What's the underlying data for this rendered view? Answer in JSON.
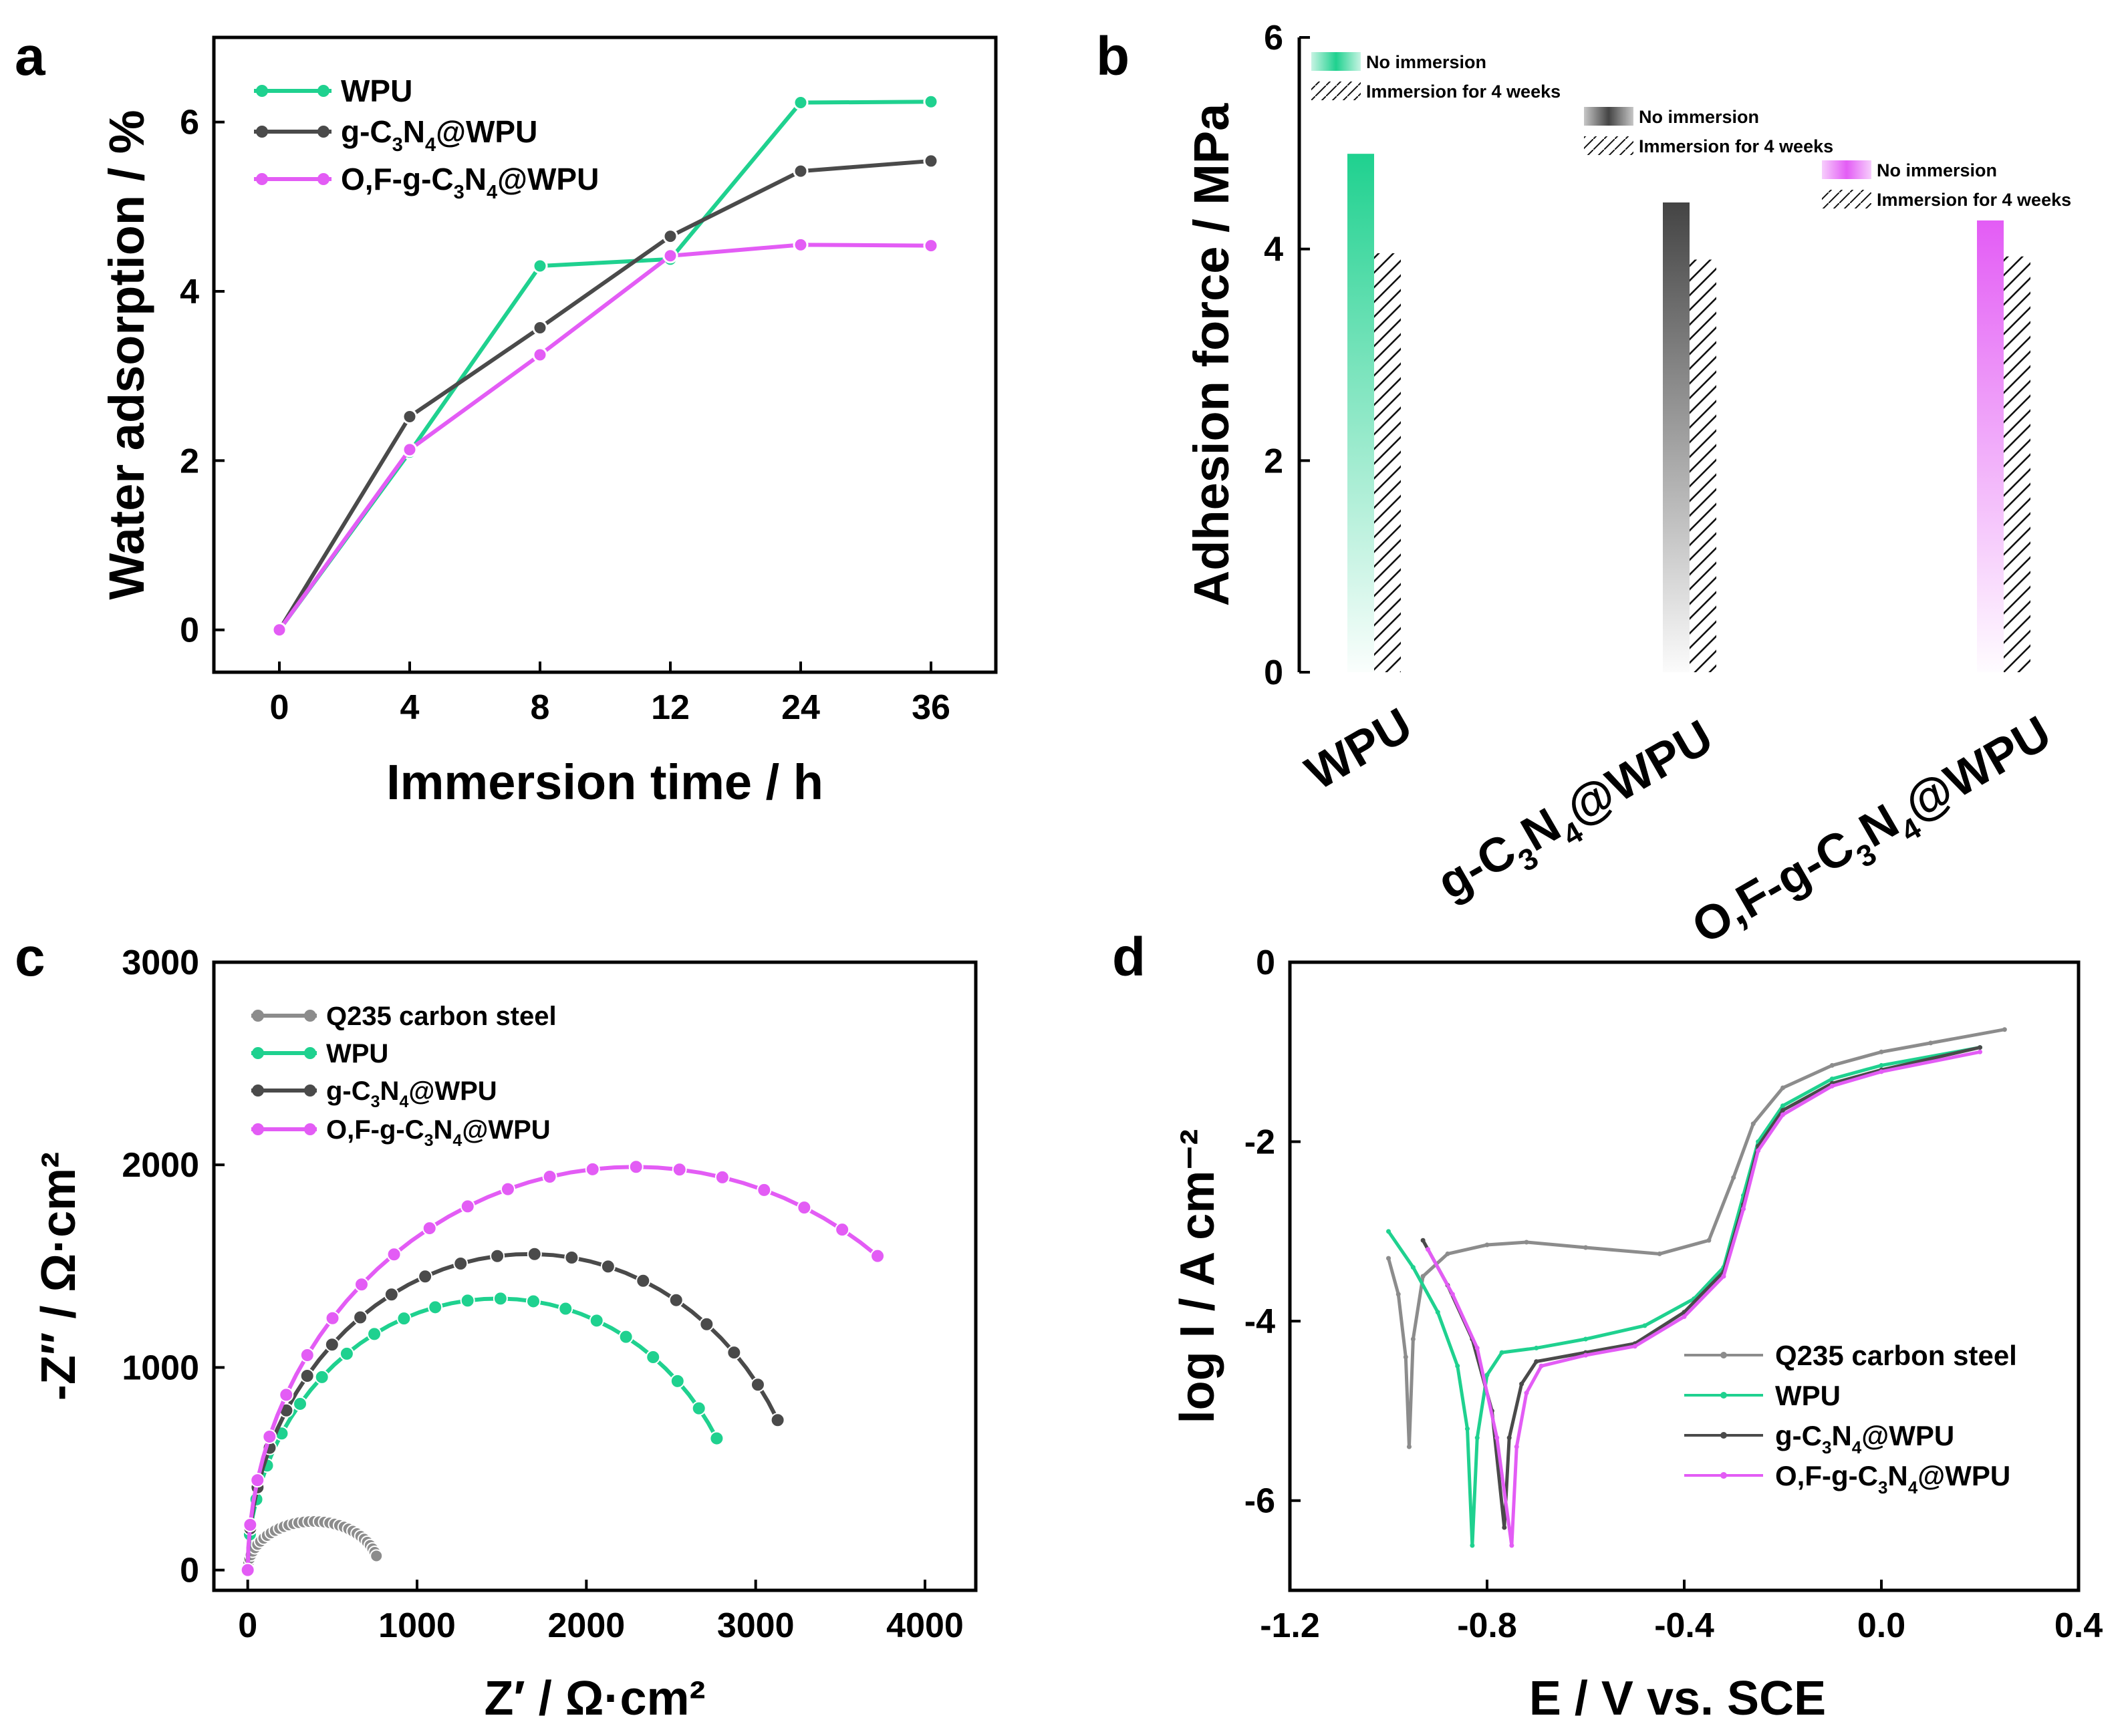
{
  "colors": {
    "wpu": "#1fd18f",
    "gc3n4": "#4a4a4a",
    "ofgc3n4": "#e35cf5",
    "q235": "#8c8c8c",
    "axis": "#000000"
  },
  "chart_data": [
    {
      "panel": "a",
      "type": "line",
      "title": "",
      "xlabel": "Immersion time / h",
      "ylabel": "Water adsorption / %",
      "categories": [
        "0",
        "4",
        "8",
        "12",
        "24",
        "36"
      ],
      "ylim": [
        -0.5,
        7.0
      ],
      "yticks": [
        "0",
        "2",
        "4",
        "6"
      ],
      "legend": {
        "position": "top-left"
      },
      "series": [
        {
          "name": "WPU",
          "name_parts": [
            "WPU",
            "",
            "",
            "",
            ""
          ],
          "values": [
            0,
            2.1,
            4.3,
            4.38,
            6.23,
            6.24
          ]
        },
        {
          "name": "g-C3N4@WPU",
          "name_parts": [
            "g-C",
            "3",
            "N",
            "4",
            "@WPU"
          ],
          "values": [
            0,
            2.52,
            3.57,
            4.65,
            5.42,
            5.54
          ]
        },
        {
          "name": "O,F-g-C3N4@WPU",
          "name_parts": [
            "O,F-g-C",
            "3",
            "N",
            "4",
            "@WPU"
          ],
          "values": [
            0,
            2.13,
            3.25,
            4.42,
            4.55,
            4.54
          ]
        }
      ]
    },
    {
      "panel": "b",
      "type": "bar",
      "title": "",
      "xlabel": "",
      "ylabel": "Adhesion force / MPa",
      "categories": [
        "WPU",
        "g-C3N4@WPU",
        "O,F-g-C3N4@WPU"
      ],
      "category_parts": [
        [
          "WPU",
          "",
          "",
          "",
          ""
        ],
        [
          "g-C",
          "3",
          "N",
          "4",
          "@WPU"
        ],
        [
          "O,F-g-C",
          "3",
          "N",
          "4",
          "@WPU"
        ]
      ],
      "ylim": [
        0,
        6
      ],
      "yticks": [
        "0",
        "2",
        "4",
        "6"
      ],
      "series": [
        {
          "name": "No immersion",
          "values": [
            4.9,
            4.44,
            4.27
          ]
        },
        {
          "name": "Immersion for 4 weeks",
          "values": [
            3.96,
            3.9,
            3.93
          ]
        }
      ],
      "legend_entries": [
        "No immersion",
        "Immersion for 4 weeks"
      ]
    },
    {
      "panel": "c",
      "type": "scatter",
      "title": "",
      "xlabel": "Z′ / Ω·cm²",
      "ylabel": "-Z″ / Ω·cm²",
      "xlim": [
        -200,
        4300
      ],
      "ylim": [
        -100,
        3000
      ],
      "xticks": [
        "0",
        "1000",
        "2000",
        "3000",
        "4000"
      ],
      "yticks": [
        "0",
        "1000",
        "2000",
        "3000"
      ],
      "legend": {
        "position": "top-left"
      },
      "series": [
        {
          "name": "Q235 carbon steel",
          "name_parts": [
            "Q235 carbon steel",
            "",
            "",
            "",
            ""
          ],
          "R": 760,
          "peak": 240,
          "end_y": 70
        },
        {
          "name": "WPU",
          "name_parts": [
            "WPU",
            "",
            "",
            "",
            ""
          ],
          "R": 2770,
          "peak": 1340,
          "end_y": 650
        },
        {
          "name": "g-C3N4@WPU",
          "name_parts": [
            "g-C",
            "3",
            "N",
            "4",
            "@WPU"
          ],
          "R": 3130,
          "peak": 1560,
          "end_y": 740
        },
        {
          "name": "O,F-g-C3N4@WPU",
          "name_parts": [
            "O,F-g-C",
            "3",
            "N",
            "4",
            "@WPU"
          ],
          "R": 3720,
          "peak": 1990,
          "end_y": 1550
        }
      ]
    },
    {
      "panel": "d",
      "type": "line",
      "title": "",
      "xlabel": "E / V vs. SCE",
      "ylabel": "log I / A cm⁻²",
      "xlim": [
        -1.2,
        0.4
      ],
      "ylim": [
        -7.0,
        0
      ],
      "xticks": [
        "-1.2",
        "-0.8",
        "-0.4",
        "0.0",
        "0.4"
      ],
      "yticks": [
        "0",
        "-2",
        "-4",
        "-6"
      ],
      "legend": {
        "position": "bottom-right"
      },
      "series": [
        {
          "name": "Q235 carbon steel",
          "name_parts": [
            "Q235 carbon steel",
            "",
            "",
            "",
            ""
          ],
          "cathodic": [
            [
              -1.0,
              -3.3
            ],
            [
              -0.98,
              -3.7
            ],
            [
              -0.965,
              -4.4
            ],
            [
              -0.958,
              -5.4
            ]
          ],
          "anodic": [
            [
              -0.958,
              -5.4
            ],
            [
              -0.95,
              -4.2
            ],
            [
              -0.93,
              -3.5
            ],
            [
              -0.88,
              -3.25
            ],
            [
              -0.8,
              -3.15
            ],
            [
              -0.72,
              -3.12
            ],
            [
              -0.6,
              -3.18
            ],
            [
              -0.45,
              -3.25
            ],
            [
              -0.35,
              -3.1
            ],
            [
              -0.3,
              -2.4
            ],
            [
              -0.26,
              -1.8
            ],
            [
              -0.2,
              -1.4
            ],
            [
              -0.1,
              -1.15
            ],
            [
              0.0,
              -1.0
            ],
            [
              0.1,
              -0.9
            ],
            [
              0.25,
              -0.75
            ]
          ]
        },
        {
          "name": "WPU",
          "name_parts": [
            "WPU",
            "",
            "",
            "",
            ""
          ],
          "cathodic": [
            [
              -1.0,
              -3.0
            ],
            [
              -0.95,
              -3.4
            ],
            [
              -0.9,
              -3.9
            ],
            [
              -0.86,
              -4.5
            ],
            [
              -0.84,
              -5.2
            ],
            [
              -0.83,
              -6.5
            ]
          ],
          "anodic": [
            [
              -0.83,
              -6.5
            ],
            [
              -0.82,
              -5.3
            ],
            [
              -0.8,
              -4.6
            ],
            [
              -0.77,
              -4.35
            ],
            [
              -0.7,
              -4.3
            ],
            [
              -0.6,
              -4.2
            ],
            [
              -0.48,
              -4.05
            ],
            [
              -0.38,
              -3.75
            ],
            [
              -0.32,
              -3.4
            ],
            [
              -0.28,
              -2.6
            ],
            [
              -0.25,
              -2.0
            ],
            [
              -0.2,
              -1.6
            ],
            [
              -0.1,
              -1.3
            ],
            [
              0.0,
              -1.15
            ],
            [
              0.2,
              -0.95
            ]
          ]
        },
        {
          "name": "g-C3N4@WPU",
          "name_parts": [
            "g-C",
            "3",
            "N",
            "4",
            "@WPU"
          ],
          "cathodic": [
            [
              -0.93,
              -3.1
            ],
            [
              -0.88,
              -3.6
            ],
            [
              -0.83,
              -4.2
            ],
            [
              -0.79,
              -5.0
            ],
            [
              -0.765,
              -6.3
            ]
          ],
          "anodic": [
            [
              -0.765,
              -6.3
            ],
            [
              -0.755,
              -5.3
            ],
            [
              -0.73,
              -4.7
            ],
            [
              -0.7,
              -4.45
            ],
            [
              -0.6,
              -4.35
            ],
            [
              -0.5,
              -4.25
            ],
            [
              -0.4,
              -3.9
            ],
            [
              -0.32,
              -3.45
            ],
            [
              -0.28,
              -2.7
            ],
            [
              -0.25,
              -2.05
            ],
            [
              -0.2,
              -1.65
            ],
            [
              -0.1,
              -1.35
            ],
            [
              0.0,
              -1.2
            ],
            [
              0.2,
              -0.95
            ]
          ]
        },
        {
          "name": "O,F-g-C3N4@WPU",
          "name_parts": [
            "O,F-g-C",
            "3",
            "N",
            "4",
            "@WPU"
          ],
          "cathodic": [
            [
              -0.92,
              -3.2
            ],
            [
              -0.87,
              -3.7
            ],
            [
              -0.82,
              -4.3
            ],
            [
              -0.78,
              -5.3
            ],
            [
              -0.75,
              -6.5
            ]
          ],
          "anodic": [
            [
              -0.75,
              -6.5
            ],
            [
              -0.74,
              -5.4
            ],
            [
              -0.72,
              -4.8
            ],
            [
              -0.69,
              -4.5
            ],
            [
              -0.6,
              -4.38
            ],
            [
              -0.5,
              -4.28
            ],
            [
              -0.4,
              -3.95
            ],
            [
              -0.32,
              -3.5
            ],
            [
              -0.28,
              -2.75
            ],
            [
              -0.25,
              -2.1
            ],
            [
              -0.2,
              -1.7
            ],
            [
              -0.1,
              -1.38
            ],
            [
              0.0,
              -1.22
            ],
            [
              0.2,
              -1.0
            ]
          ]
        }
      ]
    }
  ],
  "panel_labels": [
    "a",
    "b",
    "c",
    "d"
  ]
}
